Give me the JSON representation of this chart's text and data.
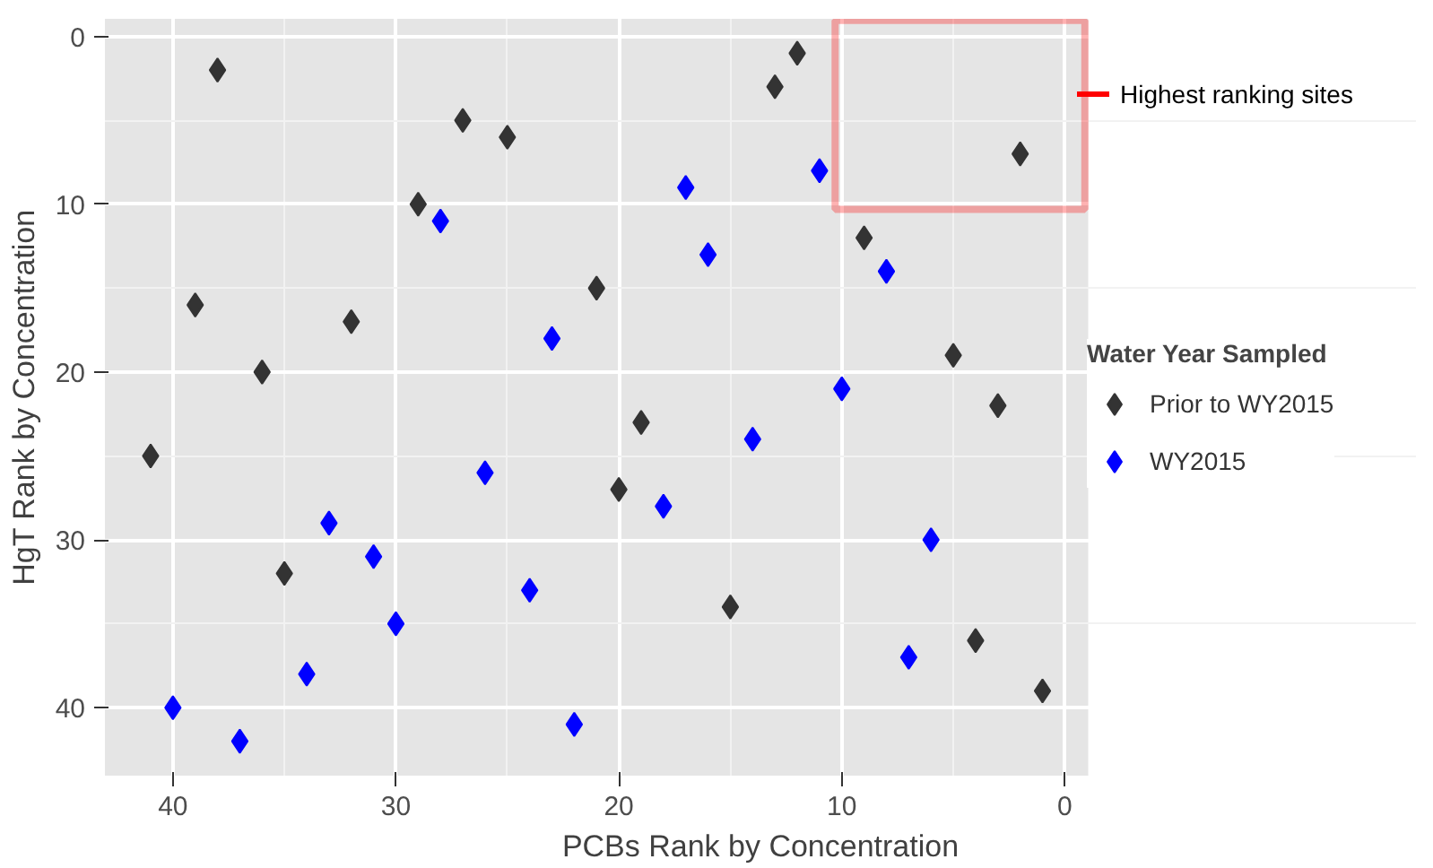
{
  "chart_data": {
    "type": "scatter",
    "xlabel": "PCBs Rank by Concentration",
    "ylabel": "HgT Rank by Concentration",
    "legend_title": "Water Year Sampled",
    "legend": "right",
    "grid": true,
    "marker": "diamond",
    "xlim": [
      43.05,
      -1.05
    ],
    "ylim": [
      44.05,
      -1.05
    ],
    "xticks": [
      40,
      30,
      20,
      10,
      0
    ],
    "yticks": [
      0,
      10,
      20,
      30,
      40
    ],
    "annotations": [
      "Highest ranking sites"
    ],
    "series": [
      {
        "name": "Prior to WY2015",
        "color": "#333333",
        "x": [
          38,
          27,
          25,
          29,
          39,
          32,
          36,
          21,
          41,
          35,
          19,
          20,
          15,
          13,
          12,
          2,
          9,
          5,
          3,
          4,
          1
        ],
        "values": [
          2,
          5,
          6,
          10,
          16,
          17,
          20,
          15,
          25,
          32,
          23,
          27,
          34,
          3,
          1,
          7,
          12,
          19,
          22,
          36,
          39
        ]
      },
      {
        "name": "WY2015",
        "color": "#0000ff",
        "x": [
          28,
          17,
          11,
          16,
          8,
          23,
          10,
          14,
          26,
          18,
          33,
          31,
          24,
          30,
          6,
          7,
          34,
          40,
          37,
          22
        ],
        "values": [
          11,
          9,
          8,
          13,
          14,
          18,
          21,
          24,
          26,
          28,
          29,
          31,
          33,
          35,
          30,
          37,
          38,
          40,
          42,
          41
        ]
      }
    ]
  }
}
